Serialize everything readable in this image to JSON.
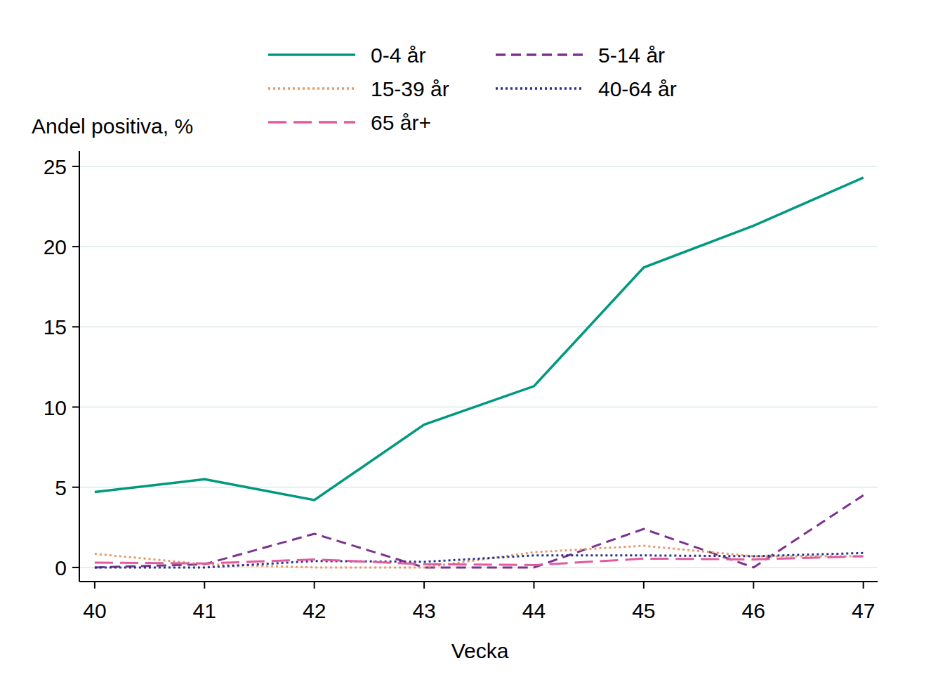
{
  "chart_data": {
    "type": "line",
    "y_label": "Andel positiva, %",
    "x_label": "Vecka",
    "x": [
      40,
      41,
      42,
      43,
      44,
      45,
      46,
      47
    ],
    "xlim": [
      39.86,
      47.13
    ],
    "xticks": [
      40,
      41,
      42,
      43,
      44,
      45,
      46,
      47
    ],
    "ylim": [
      -0.88,
      25.96
    ],
    "yticks": [
      0,
      5,
      10,
      15,
      20,
      25
    ],
    "grid": true,
    "legend": "top",
    "series": [
      {
        "name": "0-4 år",
        "color": "#00997f",
        "line_style": "solid",
        "values": [
          4.7,
          5.5,
          4.2,
          8.9,
          11.3,
          18.7,
          21.3,
          24.3
        ]
      },
      {
        "name": "5-14 år",
        "color": "#7b338f",
        "line_style": "dashed",
        "values": [
          0,
          0.2,
          2.1,
          0,
          0,
          2.4,
          0,
          4.5
        ]
      },
      {
        "name": "15-39 år",
        "color": "#e59a6a",
        "line_style": "dotted",
        "values": [
          0.85,
          0.2,
          0,
          0,
          0.95,
          1.35,
          0.7,
          0.7
        ]
      },
      {
        "name": "40-64 år",
        "color": "#25338a",
        "line_style": "dotted",
        "values": [
          0,
          0,
          0.4,
          0.35,
          0.75,
          0.75,
          0.7,
          0.9
        ]
      },
      {
        "name": "65 år+",
        "color": "#e35a9c",
        "line_style": "longdash",
        "values": [
          0.3,
          0.25,
          0.5,
          0.2,
          0.15,
          0.55,
          0.5,
          0.7
        ]
      }
    ]
  }
}
